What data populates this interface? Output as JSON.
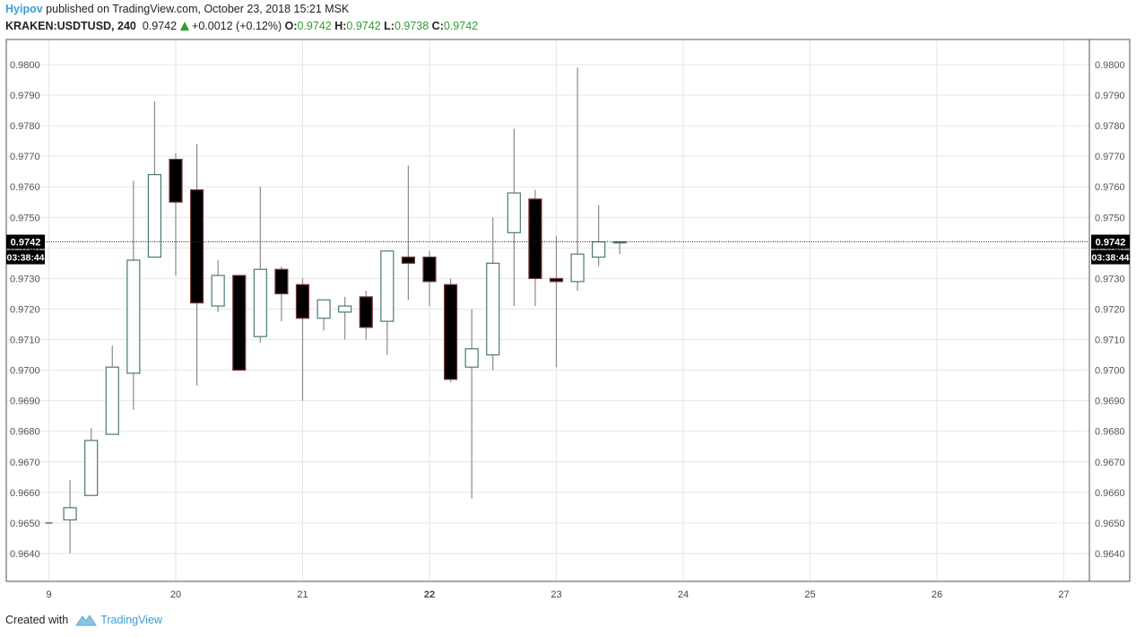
{
  "header": {
    "author": "Hyipov",
    "published_text": "published on TradingView.com, October 23, 2018 15:21 MSK",
    "symbol": "KRAKEN:USDTUSD, 240",
    "last": "0.9742",
    "change": "+0.0012 (+0.12%)",
    "o_label": "O:",
    "o_value": "0.9742",
    "h_label": "H:",
    "h_value": "0.9742",
    "l_label": "L:",
    "l_value": "0.9738",
    "c_label": "C:",
    "c_value": "0.9742"
  },
  "footer": {
    "created_with": "Created with",
    "brand": "TradingView"
  },
  "colors": {
    "up_border": "#4a7a70",
    "down_fill": "#000000",
    "down_border": "#7a3a3a",
    "wick": "#8a8a8a",
    "grid": "#e6e6e6",
    "price_label_bg": "#000000",
    "accent": "#3d9bd4",
    "green": "#2e9e2e"
  },
  "chart_data": {
    "type": "candlestick",
    "x_ticks": [
      "9",
      "20",
      "21",
      "22",
      "23",
      "24",
      "25",
      "26",
      "27"
    ],
    "x_ticks_bold": [
      "22"
    ],
    "y_ticks": [
      "0.9640",
      "0.9650",
      "0.9660",
      "0.9670",
      "0.9680",
      "0.9690",
      "0.9700",
      "0.9710",
      "0.9720",
      "0.9730",
      "0.9740",
      "0.9750",
      "0.9760",
      "0.9770",
      "0.9780",
      "0.9790",
      "0.9800"
    ],
    "ylim": [
      0.9631,
      0.9808
    ],
    "xlim": [
      19.0,
      27.22
    ],
    "grid": true,
    "current_price": 0.9742,
    "current_price_label": "0.9742",
    "countdown_label": "03:38:44",
    "candles": [
      {
        "t": 19.0,
        "o": 0.965,
        "h": 0.965,
        "l": 0.965,
        "c": 0.965
      },
      {
        "t": 19.1667,
        "o": 0.9651,
        "h": 0.9664,
        "l": 0.964,
        "c": 0.9655
      },
      {
        "t": 19.3333,
        "o": 0.9659,
        "h": 0.9681,
        "l": 0.9659,
        "c": 0.9677
      },
      {
        "t": 19.5,
        "o": 0.9679,
        "h": 0.9708,
        "l": 0.9679,
        "c": 0.9701
      },
      {
        "t": 19.6667,
        "o": 0.9699,
        "h": 0.9762,
        "l": 0.9687,
        "c": 0.9736
      },
      {
        "t": 19.8333,
        "o": 0.9737,
        "h": 0.9788,
        "l": 0.9737,
        "c": 0.9764
      },
      {
        "t": 20.0,
        "o": 0.9769,
        "h": 0.9771,
        "l": 0.9731,
        "c": 0.9755
      },
      {
        "t": 20.1667,
        "o": 0.9759,
        "h": 0.9774,
        "l": 0.9695,
        "c": 0.9722
      },
      {
        "t": 20.3333,
        "o": 0.9721,
        "h": 0.9736,
        "l": 0.9719,
        "c": 0.9731
      },
      {
        "t": 20.5,
        "o": 0.9731,
        "h": 0.9731,
        "l": 0.97,
        "c": 0.97
      },
      {
        "t": 20.6667,
        "o": 0.9711,
        "h": 0.976,
        "l": 0.9709,
        "c": 0.9733
      },
      {
        "t": 20.8333,
        "o": 0.9733,
        "h": 0.9734,
        "l": 0.9716,
        "c": 0.9725
      },
      {
        "t": 21.0,
        "o": 0.9728,
        "h": 0.973,
        "l": 0.969,
        "c": 0.9717
      },
      {
        "t": 21.1667,
        "o": 0.9717,
        "h": 0.9723,
        "l": 0.9713,
        "c": 0.9723
      },
      {
        "t": 21.3333,
        "o": 0.9719,
        "h": 0.9724,
        "l": 0.971,
        "c": 0.9721
      },
      {
        "t": 21.5,
        "o": 0.9724,
        "h": 0.9726,
        "l": 0.971,
        "c": 0.9714
      },
      {
        "t": 21.6667,
        "o": 0.9716,
        "h": 0.9739,
        "l": 0.9705,
        "c": 0.9739
      },
      {
        "t": 21.8333,
        "o": 0.9737,
        "h": 0.9767,
        "l": 0.9723,
        "c": 0.9735
      },
      {
        "t": 22.0,
        "o": 0.9737,
        "h": 0.9739,
        "l": 0.9721,
        "c": 0.9729
      },
      {
        "t": 22.1667,
        "o": 0.9728,
        "h": 0.973,
        "l": 0.9696,
        "c": 0.9697
      },
      {
        "t": 22.3333,
        "o": 0.9701,
        "h": 0.972,
        "l": 0.9658,
        "c": 0.9707
      },
      {
        "t": 22.5,
        "o": 0.9705,
        "h": 0.975,
        "l": 0.97,
        "c": 0.9735
      },
      {
        "t": 22.6667,
        "o": 0.9745,
        "h": 0.9779,
        "l": 0.9721,
        "c": 0.9758
      },
      {
        "t": 22.8333,
        "o": 0.9756,
        "h": 0.9759,
        "l": 0.9721,
        "c": 0.973
      },
      {
        "t": 23.0,
        "o": 0.973,
        "h": 0.9744,
        "l": 0.9701,
        "c": 0.9729
      },
      {
        "t": 23.1667,
        "o": 0.9729,
        "h": 0.9799,
        "l": 0.9726,
        "c": 0.9738
      },
      {
        "t": 23.3333,
        "o": 0.9737,
        "h": 0.9754,
        "l": 0.9734,
        "c": 0.9742
      },
      {
        "t": 23.5,
        "o": 0.9742,
        "h": 0.9742,
        "l": 0.9738,
        "c": 0.9742
      }
    ]
  }
}
